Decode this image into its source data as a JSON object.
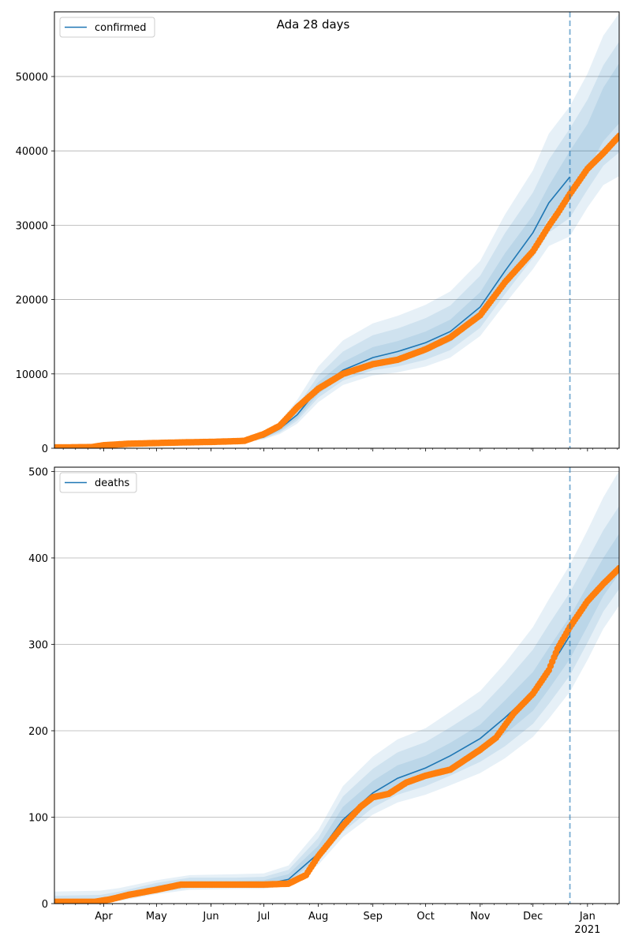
{
  "title": "Ada 28 days",
  "colors": {
    "line": "#1f77b4",
    "points": "#ff7f0e",
    "band": "#1f77b4",
    "vline": "#1f77b4",
    "grid": "#b0b0b0"
  },
  "chart_data": [
    {
      "type": "line",
      "legend": "confirmed",
      "legend_position": "top-left",
      "grid": "horizontal",
      "xaxis": {
        "start": "2020-03-04",
        "end": "2021-01-19",
        "month_ticks": [
          {
            "date": "2020-04-01",
            "label": "Apr"
          },
          {
            "date": "2020-05-01",
            "label": "May"
          },
          {
            "date": "2020-06-01",
            "label": "Jun"
          },
          {
            "date": "2020-07-01",
            "label": "Jul"
          },
          {
            "date": "2020-08-01",
            "label": "Aug"
          },
          {
            "date": "2020-09-01",
            "label": "Sep"
          },
          {
            "date": "2020-10-01",
            "label": "Oct"
          },
          {
            "date": "2020-11-01",
            "label": "Nov"
          },
          {
            "date": "2020-12-01",
            "label": "Dec"
          },
          {
            "date": "2021-01-01",
            "label": "Jan",
            "sublabel": "2021"
          }
        ]
      },
      "ylim": [
        0,
        58700
      ],
      "yticks": [
        0,
        10000,
        20000,
        30000,
        40000,
        50000
      ],
      "forecast_start": "2020-12-22",
      "model": {
        "dates": [
          "2020-03-04",
          "2020-03-30",
          "2020-04-15",
          "2020-05-01",
          "2020-06-01",
          "2020-06-20",
          "2020-07-01",
          "2020-07-10",
          "2020-07-20",
          "2020-08-01",
          "2020-08-15",
          "2020-09-01",
          "2020-09-15",
          "2020-10-01",
          "2020-10-15",
          "2020-11-01",
          "2020-11-15",
          "2020-12-01",
          "2020-12-10",
          "2020-12-22",
          "2021-01-01",
          "2021-01-10",
          "2021-01-19"
        ],
        "median": [
          100,
          200,
          600,
          700,
          800,
          900,
          1500,
          2600,
          4500,
          8000,
          10500,
          12200,
          13000,
          14200,
          15700,
          19000,
          23800,
          29000,
          33000,
          36500,
          40200,
          45000,
          49000
        ],
        "band_outer": [
          {
            "lo": [
              80,
              150,
              500,
              600,
              700,
              800,
              1200,
              1900,
              3300,
              6200,
              8500,
              9800,
              10200,
              11000,
              12200,
              15100,
              19400,
              24100,
              27200,
              28500,
              32400,
              35400,
              36600
            ],
            "hi": [
              130,
              280,
              780,
              900,
              1050,
              1200,
              2000,
              3500,
              6500,
              11000,
              14500,
              16800,
              17800,
              19300,
              21100,
              25200,
              31400,
              37400,
              42300,
              46000,
              50400,
              55500,
              58500
            ]
          },
          {
            "lo": [
              85,
              170,
              540,
              640,
              740,
              840,
              1300,
              2100,
              3700,
              6800,
              9100,
              10500,
              11000,
              11900,
              13200,
              16200,
              20700,
              25600,
              29000,
              31000,
              34800,
              38000,
              39800
            ],
            "hi": [
              120,
              250,
              700,
              800,
              950,
              1080,
              1800,
              3100,
              5700,
              9800,
              13000,
              15200,
              16100,
              17500,
              19200,
              23200,
              28900,
              34400,
              38800,
              43000,
              46900,
              51500,
              54700
            ]
          },
          {
            "lo": [
              90,
              185,
              570,
              670,
              770,
              870,
              1400,
              2300,
              4000,
              7300,
              9700,
              11200,
              11800,
              12900,
              14300,
              17500,
              22200,
              27300,
              31000,
              33500,
              37500,
              41300,
              43700
            ],
            "hi": [
              110,
              225,
              640,
              740,
              850,
              960,
              1650,
              2900,
              5100,
              8900,
              11600,
              13600,
              14400,
              15700,
              17300,
              21000,
              26200,
              31300,
              35300,
              40000,
              43600,
              48500,
              51800
            ]
          }
        ]
      },
      "observed": {
        "dates": [
          "2020-03-04",
          "2020-03-25",
          "2020-04-01",
          "2020-04-15",
          "2020-05-01",
          "2020-05-15",
          "2020-06-01",
          "2020-06-15",
          "2020-06-20",
          "2020-07-01",
          "2020-07-10",
          "2020-07-20",
          "2020-08-01",
          "2020-08-15",
          "2020-09-01",
          "2020-09-15",
          "2020-10-01",
          "2020-10-15",
          "2020-11-01",
          "2020-11-15",
          "2020-12-01",
          "2020-12-10",
          "2020-12-15",
          "2020-12-22",
          "2021-01-01",
          "2021-01-10",
          "2021-01-19"
        ],
        "values": [
          100,
          150,
          400,
          600,
          700,
          780,
          850,
          950,
          1000,
          1900,
          3000,
          5500,
          8000,
          10000,
          11300,
          11900,
          13300,
          14900,
          17900,
          22300,
          26500,
          29900,
          31600,
          34200,
          37600,
          39700,
          42000
        ]
      }
    },
    {
      "type": "line",
      "legend": "deaths",
      "legend_position": "top-left",
      "grid": "horizontal",
      "ylim": [
        0,
        505
      ],
      "yticks": [
        0,
        100,
        200,
        300,
        400,
        500
      ],
      "forecast_start": "2020-12-22",
      "model": {
        "dates": [
          "2020-03-04",
          "2020-03-30",
          "2020-04-10",
          "2020-05-01",
          "2020-05-20",
          "2020-06-15",
          "2020-07-01",
          "2020-07-15",
          "2020-08-01",
          "2020-08-15",
          "2020-09-01",
          "2020-09-15",
          "2020-10-01",
          "2020-10-15",
          "2020-11-01",
          "2020-11-15",
          "2020-12-01",
          "2020-12-10",
          "2020-12-22",
          "2021-01-01",
          "2021-01-10",
          "2021-01-19"
        ],
        "median": [
          1,
          2,
          6,
          17,
          22,
          22,
          22,
          28,
          58,
          97,
          128,
          145,
          157,
          171,
          191,
          215,
          245,
          271,
          310,
          345,
          374,
          400
        ],
        "band_outer": [
          {
            "lo": [
              0,
              0,
              3,
              11,
              16,
              17,
              17,
              21,
              45,
              77,
              103,
              117,
              126,
              137,
              151,
              168,
              193,
              214,
              245,
              282,
              318,
              345
            ],
            "hi": [
              14,
              15,
              18,
              27,
              33,
              34,
              35,
              44,
              85,
              136,
              170,
              190,
              203,
              222,
              246,
              278,
              320,
              352,
              392,
              432,
              470,
              501
            ]
          },
          {
            "lo": [
              0,
              1,
              4,
              13,
              18,
              19,
              19,
              23,
              49,
              83,
              111,
              126,
              136,
              148,
              164,
              182,
              208,
              231,
              264,
              302,
              338,
              364
            ],
            "hi": [
              9,
              10,
              14,
              24,
              30,
              30,
              31,
              39,
              76,
              124,
              156,
              175,
              187,
              204,
              226,
              256,
              294,
              323,
              360,
              398,
              432,
              460
            ]
          },
          {
            "lo": [
              0,
              1,
              5,
              15,
              20,
              20,
              20,
              25,
              53,
              89,
              119,
              134,
              145,
              158,
              176,
              196,
              223,
              248,
              283,
              321,
              356,
              382
            ],
            "hi": [
              5,
              6,
              10,
              21,
              26,
              26,
              27,
              34,
              67,
              112,
              142,
              160,
              171,
              186,
              207,
              235,
              268,
              296,
              332,
              368,
              400,
              428
            ]
          }
        ]
      },
      "observed": {
        "dates": [
          "2020-03-04",
          "2020-03-27",
          "2020-04-05",
          "2020-04-15",
          "2020-05-01",
          "2020-05-15",
          "2020-06-01",
          "2020-06-15",
          "2020-07-01",
          "2020-07-15",
          "2020-07-25",
          "2020-08-01",
          "2020-08-15",
          "2020-08-25",
          "2020-09-01",
          "2020-09-10",
          "2020-09-20",
          "2020-10-01",
          "2020-10-15",
          "2020-11-01",
          "2020-11-10",
          "2020-11-20",
          "2020-12-01",
          "2020-12-10",
          "2020-12-15",
          "2020-12-22",
          "2021-01-01",
          "2021-01-10",
          "2021-01-19"
        ],
        "values": [
          2,
          2,
          5,
          10,
          16,
          22,
          22,
          22,
          22,
          23,
          33,
          55,
          90,
          112,
          123,
          127,
          140,
          148,
          155,
          178,
          192,
          220,
          243,
          270,
          295,
          320,
          350,
          370,
          388
        ]
      }
    }
  ]
}
